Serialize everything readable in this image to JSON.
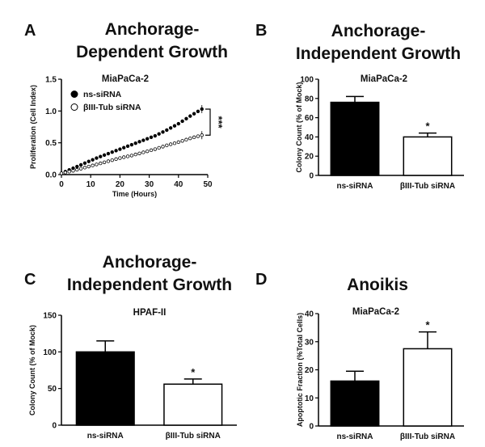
{
  "chart_data": [
    {
      "panel": "A",
      "type": "line",
      "title_lines": [
        "Anchorage-",
        "Dependent  Growth"
      ],
      "subtitle": "MiaPaCa-2",
      "xlabel": "Time (Hours)",
      "ylabel": "Proliferation (Cell Index)",
      "xlim": [
        0,
        50
      ],
      "ylim": [
        0,
        1.5
      ],
      "xticks": [
        0,
        10,
        20,
        30,
        40,
        50
      ],
      "yticks": [
        0.0,
        0.5,
        1.0,
        1.5
      ],
      "ytick_labels": [
        "0.0",
        "0.5",
        "1.0",
        "1.5"
      ],
      "series": [
        {
          "name": "ns-siRNA",
          "marker": "filled",
          "x": [
            0,
            4,
            8,
            12,
            16,
            20,
            24,
            28,
            32,
            36,
            40,
            44,
            48
          ],
          "y": [
            0.02,
            0.1,
            0.18,
            0.26,
            0.33,
            0.4,
            0.47,
            0.54,
            0.61,
            0.7,
            0.8,
            0.92,
            1.03
          ]
        },
        {
          "name": "βIII-Tub siRNA",
          "marker": "open",
          "x": [
            0,
            4,
            8,
            12,
            16,
            20,
            24,
            28,
            32,
            36,
            40,
            44,
            48
          ],
          "y": [
            0.02,
            0.06,
            0.11,
            0.16,
            0.21,
            0.26,
            0.3,
            0.35,
            0.4,
            0.46,
            0.51,
            0.57,
            0.62
          ]
        }
      ],
      "significance": "***"
    },
    {
      "panel": "B",
      "type": "bar",
      "title_lines": [
        "Anchorage-",
        "Independent  Growth"
      ],
      "subtitle": "MiaPaCa-2",
      "ylabel": "Colony Count (% of Mock)",
      "ylim": [
        0,
        100
      ],
      "yticks": [
        0,
        20,
        40,
        60,
        80,
        100
      ],
      "categories": [
        "ns-siRNA",
        "βIII-Tub siRNA"
      ],
      "values": [
        76,
        40
      ],
      "errors": [
        6,
        4
      ],
      "fills": [
        "#000000",
        "#ffffff"
      ],
      "significance": [
        "",
        "*"
      ]
    },
    {
      "panel": "C",
      "type": "bar",
      "title_lines": [
        "Anchorage-",
        "Independent  Growth"
      ],
      "subtitle": "HPAF-II",
      "ylabel": "Colony Count (% of Mock)",
      "ylim": [
        0,
        150
      ],
      "yticks": [
        0,
        50,
        100,
        150
      ],
      "categories": [
        "ns-siRNA",
        "βIII-Tub siRNA"
      ],
      "values": [
        100,
        56
      ],
      "errors": [
        15,
        7
      ],
      "fills": [
        "#000000",
        "#ffffff"
      ],
      "significance": [
        "",
        "*"
      ]
    },
    {
      "panel": "D",
      "type": "bar",
      "title_lines": [
        "Anoikis"
      ],
      "subtitle": "MiaPaCa-2",
      "ylabel": "Apoptotic Fraction (%Total Cells)",
      "ylim": [
        0,
        40
      ],
      "yticks": [
        0,
        10,
        20,
        30,
        40
      ],
      "categories": [
        "ns-siRNA",
        "βIII-Tub siRNA"
      ],
      "values": [
        16,
        27.5
      ],
      "errors": [
        3.5,
        6
      ],
      "fills": [
        "#000000",
        "#ffffff"
      ],
      "significance": [
        "",
        "*"
      ]
    }
  ]
}
